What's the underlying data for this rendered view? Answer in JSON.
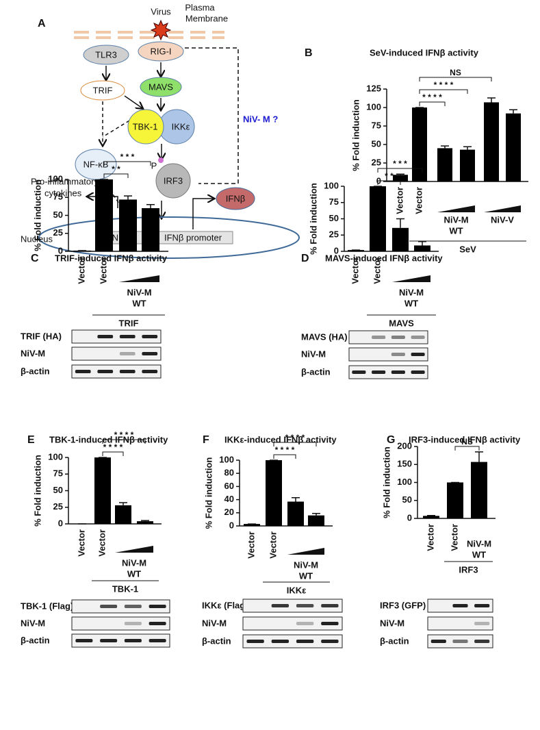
{
  "diagram": {
    "panel": "A",
    "virus": "Virus",
    "membrane": [
      "Plasma",
      "Membrane"
    ],
    "tlr3": "TLR3",
    "rigi": "RIG-I",
    "trif": "TRIF",
    "mavs": "MAVS",
    "tbk1": "TBK-1",
    "ikke": "IKKε",
    "nfkb": "NF-κB",
    "p": "P",
    "irf3": "IRF3",
    "nivm": "NiV- M ?",
    "cytokines": [
      "Pro-inflammatory",
      "cytokines"
    ],
    "ifnb": "IFNβ",
    "nucleus": "Nucleus",
    "nfkb_box": "NF-κB",
    "promoter": "IFNβ promoter"
  },
  "chart_data": [
    {
      "type": "bar",
      "panel": "B",
      "title": "SeV-induced IFNβ activity",
      "y_label": "% Fold induction",
      "color": "#000000",
      "categories": [
        "Vector",
        "Vector",
        null,
        null,
        null,
        null
      ],
      "values": [
        9,
        100,
        45,
        43,
        107,
        92
      ],
      "errors": [
        1,
        0,
        3,
        4,
        6,
        5
      ],
      "ylim": [
        0,
        125
      ],
      "yticks": [
        0,
        25,
        50,
        75,
        100,
        125
      ],
      "groups": [
        {
          "label": [
            "NiV-M",
            "WT"
          ],
          "from": 2,
          "to": 3
        },
        {
          "label": [
            "NiV-V"
          ],
          "from": 4,
          "to": 5
        }
      ],
      "treatment": {
        "label": "SeV",
        "from": 1,
        "to": 5
      },
      "brackets": [
        {
          "label": "* * * *",
          "from": 1,
          "to": 2
        },
        {
          "label": "* * * *",
          "from": 1,
          "to": 3
        },
        {
          "label": "NS",
          "from": 1,
          "to": 4
        }
      ]
    },
    {
      "type": "bar",
      "panel": "C",
      "title": "TRIF-induced IFNβ activity",
      "y_label": "% Fold induction",
      "color": "#000000",
      "categories": [
        "Vector",
        "Vector",
        null,
        null
      ],
      "values": [
        1,
        100,
        72,
        60
      ],
      "errors": [
        0,
        0,
        5,
        5
      ],
      "ylim": [
        0,
        100
      ],
      "yticks": [
        0,
        25,
        50,
        75,
        100
      ],
      "groups": [
        {
          "label": [
            "NiV-M",
            "WT"
          ],
          "from": 2,
          "to": 3
        }
      ],
      "treatment": {
        "label": "TRIF",
        "from": 1,
        "to": 3
      },
      "brackets": [
        {
          "label": "* *",
          "from": 1,
          "to": 2
        },
        {
          "label": "* * *",
          "from": 1,
          "to": 3
        }
      ],
      "blot_labels": [
        "TRIF (HA)",
        "NiV-M",
        "β-actin"
      ]
    },
    {
      "type": "bar",
      "panel": "D",
      "title": "MAVS-induced IFNβ activity",
      "y_label": "% Fold induction",
      "color": "#000000",
      "categories": [
        "Vector",
        "Vector",
        null,
        null
      ],
      "values": [
        2,
        100,
        36,
        9
      ],
      "errors": [
        0,
        0,
        14,
        6
      ],
      "ylim": [
        0,
        100
      ],
      "yticks": [
        0,
        25,
        50,
        75,
        100
      ],
      "groups": [
        {
          "label": [
            "NiV-M",
            "WT"
          ],
          "from": 2,
          "to": 3
        }
      ],
      "treatment": {
        "label": "MAVS",
        "from": 1,
        "to": 3
      },
      "brackets": [
        {
          "label": "* *",
          "from": 1,
          "to": 2
        },
        {
          "label": "* * *",
          "from": 1,
          "to": 3
        }
      ],
      "blot_labels": [
        "MAVS (HA)",
        "NiV-M",
        "β-actin"
      ]
    },
    {
      "type": "bar",
      "panel": "E",
      "title": "TBK-1-induced IFNβ activity",
      "y_label": "% Fold induction",
      "color": "#000000",
      "categories": [
        "Vector",
        "Vector",
        null,
        null
      ],
      "values": [
        0,
        100,
        28,
        4
      ],
      "errors": [
        0,
        0,
        4,
        1
      ],
      "ylim": [
        0,
        100
      ],
      "yticks": [
        0,
        25,
        50,
        75,
        100
      ],
      "groups": [
        {
          "label": [
            "NiV-M",
            "WT"
          ],
          "from": 2,
          "to": 3
        }
      ],
      "treatment": {
        "label": "TBK-1",
        "from": 1,
        "to": 3
      },
      "brackets": [
        {
          "label": "* * * *",
          "from": 1,
          "to": 2
        },
        {
          "label": "* * * *",
          "from": 1,
          "to": 3
        }
      ],
      "blot_labels": [
        "TBK-1 (Flag)",
        "NiV-M",
        "β-actin"
      ]
    },
    {
      "type": "bar",
      "panel": "F",
      "title": "IKKε-induced IFNβ activity",
      "y_label": "% Fold induction",
      "color": "#000000",
      "categories": [
        "Vector",
        "Vector",
        null,
        null
      ],
      "values": [
        3,
        100,
        37,
        16
      ],
      "errors": [
        0,
        0,
        6,
        3
      ],
      "ylim": [
        0,
        100
      ],
      "yticks": [
        0,
        20,
        40,
        60,
        80,
        100
      ],
      "groups": [
        {
          "label": [
            "NiV-M",
            "WT"
          ],
          "from": 2,
          "to": 3
        }
      ],
      "treatment": {
        "label": "IKKε",
        "from": 1,
        "to": 3
      },
      "brackets": [
        {
          "label": "* * * *",
          "from": 1,
          "to": 2
        },
        {
          "label": "* * * *",
          "from": 1,
          "to": 3
        }
      ],
      "blot_labels": [
        "IKKε (Flag)",
        "NiV-M",
        "β-actin"
      ]
    },
    {
      "type": "bar",
      "panel": "G",
      "title": "IRF3-induced IFNβ activity",
      "y_label": "% Fold induction",
      "color": "#000000",
      "categories": [
        "Vector",
        "Vector",
        null
      ],
      "values": [
        7,
        100,
        157
      ],
      "errors": [
        1,
        0,
        28
      ],
      "ylim": [
        0,
        200
      ],
      "yticks": [
        0,
        50,
        100,
        150,
        200
      ],
      "groups": [
        {
          "label": [
            "NiV-M",
            "WT"
          ],
          "from": 2,
          "to": 2
        }
      ],
      "treatment": {
        "label": "IRF3",
        "from": 1,
        "to": 2
      },
      "brackets": [
        {
          "label": "NS",
          "from": 1,
          "to": 2
        }
      ],
      "blot_labels": [
        "IRF3 (GFP)",
        "NiV-M",
        "β-actin"
      ]
    }
  ]
}
